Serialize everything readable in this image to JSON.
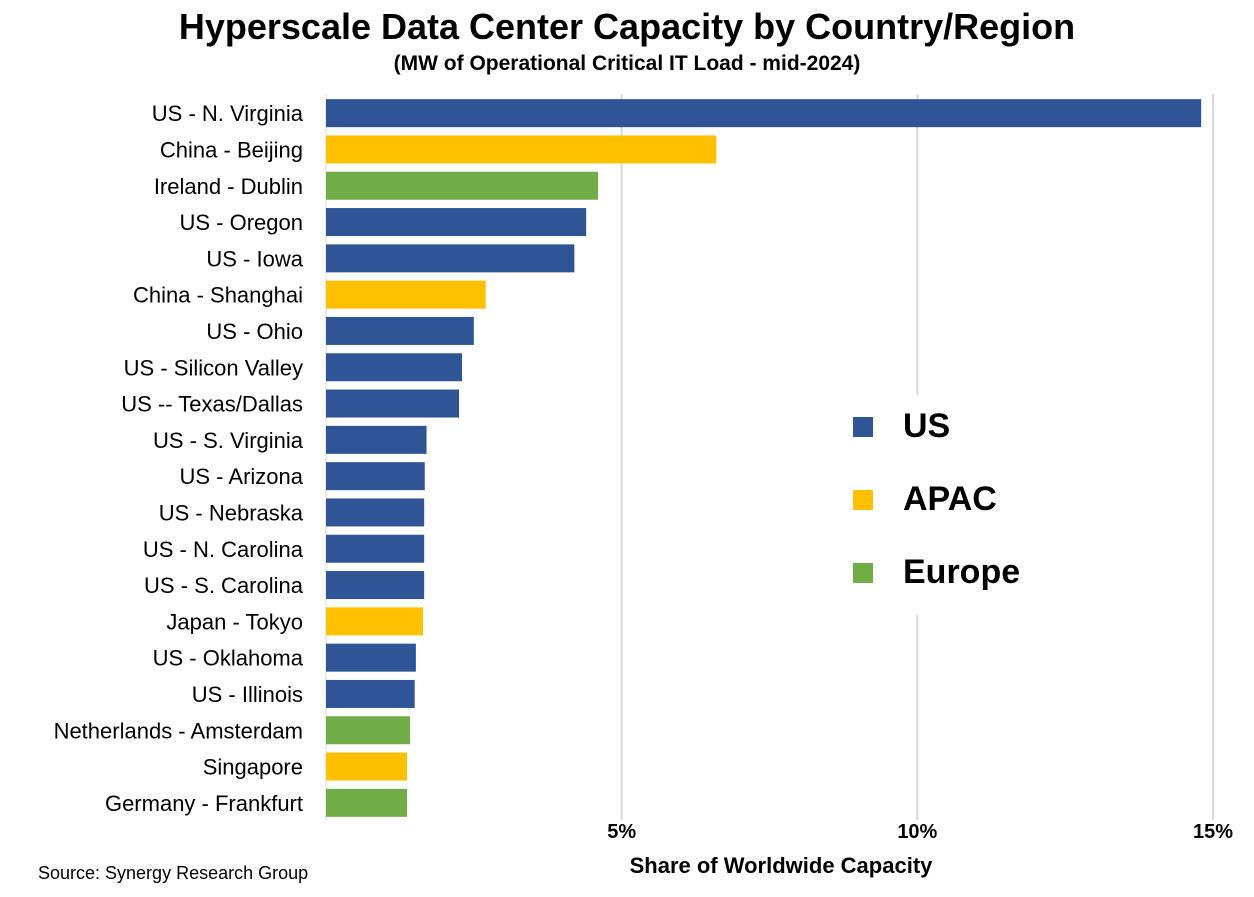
{
  "chart_data": {
    "type": "bar",
    "orientation": "horizontal",
    "title": "Hyperscale Data Center Capacity by Country/Region",
    "subtitle": "(MW of Operational Critical IT Load - mid-2024)",
    "xlabel": "Share of Worldwide Capacity",
    "xlim": [
      0,
      15.5
    ],
    "xticks": [
      5,
      10,
      15
    ],
    "xtick_labels": [
      "5%",
      "10%",
      "15%"
    ],
    "grid": "vertical",
    "legend_placement": "center-right",
    "legend": [
      {
        "name": "US",
        "color": "#2F5597"
      },
      {
        "name": "APAC",
        "color": "#FFC000"
      },
      {
        "name": "Europe",
        "color": "#70AD47"
      }
    ],
    "categories": [
      "US - N. Virginia",
      "China - Beijing",
      "Ireland - Dublin",
      "US - Oregon",
      "US - Iowa",
      "China - Shanghai",
      "US - Ohio",
      "US - Silicon Valley",
      "US -- Texas/Dallas",
      "US - S. Virginia",
      "US - Arizona",
      "US - Nebraska",
      "US - N. Carolina",
      "US - S. Carolina",
      "Japan - Tokyo",
      "US - Oklahoma",
      "US - Illinois",
      "Netherlands - Amsterdam",
      "Singapore",
      "Germany - Frankfurt"
    ],
    "values": [
      14.8,
      6.6,
      4.6,
      4.4,
      4.2,
      2.7,
      2.5,
      2.3,
      2.25,
      1.7,
      1.67,
      1.66,
      1.66,
      1.66,
      1.64,
      1.52,
      1.5,
      1.42,
      1.37,
      1.37
    ],
    "groups": [
      "US",
      "APAC",
      "Europe",
      "US",
      "US",
      "APAC",
      "US",
      "US",
      "US",
      "US",
      "US",
      "US",
      "US",
      "US",
      "APAC",
      "US",
      "US",
      "Europe",
      "APAC",
      "Europe"
    ]
  },
  "source": "Source: Synergy Research Group"
}
